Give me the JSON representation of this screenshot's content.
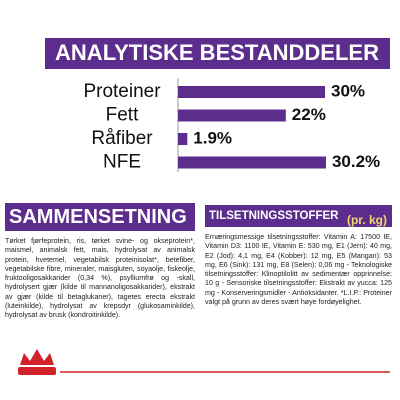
{
  "chart_data": {
    "type": "bar",
    "orientation": "horizontal",
    "title": "ANALYTISKE BESTANDDELER",
    "categories": [
      "Proteiner",
      "Fett",
      "Råfiber",
      "NFE"
    ],
    "values": [
      30,
      22,
      1.9,
      30.2
    ],
    "value_labels": [
      "30%",
      "22%",
      "1.9%",
      "30.2%"
    ],
    "color": "#5c2d8c"
  },
  "composition": {
    "title": "SAMMENSETNING",
    "text": "Tørket fjørfeprotein, ris, tørket svine- og okseprotein*, maismel, animalsk fett, mais, hydrolysat av animalsk protein, hvetemel, vegetabilsk proteinisolat*, betefiber, vegetabilske fibre, mineraler, maisgluten, soyaolje, fiskeolje, fruktooligosakkarider (0,34 %), psylliumfrø og -skall, hydrolysert gjær (kilde til mannanoligosakkarider), ekstrakt av gjær (kilde til betaglukaner), tagetes erecta ekstrakt (luteinkilde), hydrolysat av krepsdyr (glukosaminkilde), hydrolysat av brusk (kondroitinkilde)."
  },
  "additives": {
    "title": "TILSETNINGSSTOFFER",
    "unit": "(pr. kg)",
    "text": "Ernæringsmessige tilsetningsstoffer: Vitamin A: 17500 IE, Vitamin D3: 1100 IE, Vitamin E: 530 mg, E1 (Jern): 40 mg, E2 (Jod): 4,1 mg, E4 (Kobber): 12 mg, E5 (Mangan): 53 mg, E6 (Sink): 131 mg, E8 (Selen): 0,06 mg - Teknologiske tilsetningsstoffer: Klinoptilolitt av sedimentær opprinnelse: 10 g - Sensoriske tilsetningsstoffer: Ekstrakt av yucca: 125 mg - Konserveringsmidler - Antioksidanter. *L.I.P.: Proteiner valgt på grunn av deres svært høye fordøyelighet."
  }
}
